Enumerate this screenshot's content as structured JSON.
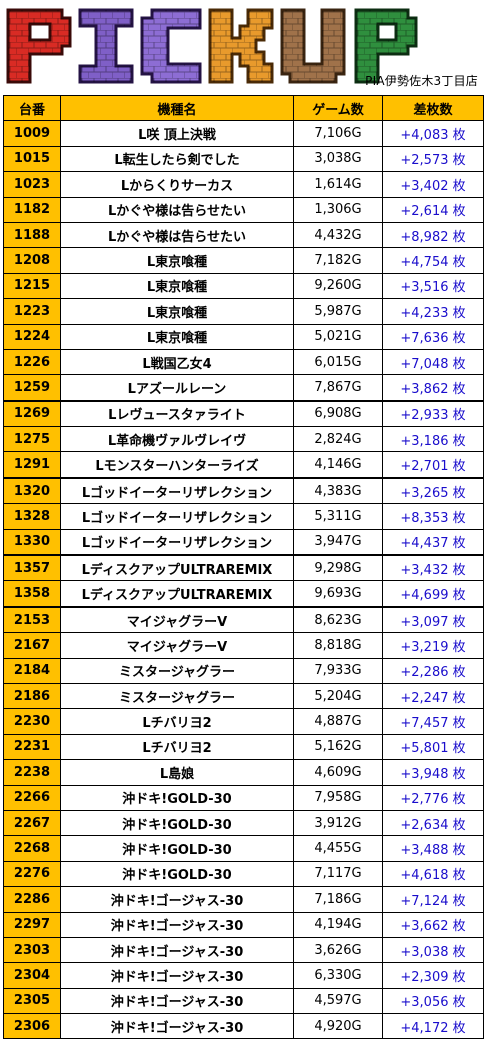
{
  "header": {
    "logo_text": "PICKUP",
    "store_name": "PIA伊勢佐木3丁目店"
  },
  "table": {
    "columns": [
      "台番",
      "機種名",
      "ゲーム数",
      "差枚数"
    ],
    "rows": [
      {
        "num": "1009",
        "name": "L咲 頂上決戦",
        "games": "7,106G",
        "diff": "+4,083 枚"
      },
      {
        "num": "1015",
        "name": "L転生したら剣でした",
        "games": "3,038G",
        "diff": "+2,573 枚"
      },
      {
        "num": "1023",
        "name": "Lからくりサーカス",
        "games": "1,614G",
        "diff": "+3,402 枚"
      },
      {
        "num": "1182",
        "name": "Lかぐや様は告らせたい",
        "games": "1,306G",
        "diff": "+2,614 枚"
      },
      {
        "num": "1188",
        "name": "Lかぐや様は告らせたい",
        "games": "4,432G",
        "diff": "+8,982 枚"
      },
      {
        "num": "1208",
        "name": "L東京喰種",
        "games": "7,182G",
        "diff": "+4,754 枚"
      },
      {
        "num": "1215",
        "name": "L東京喰種",
        "games": "9,260G",
        "diff": "+3,516 枚"
      },
      {
        "num": "1223",
        "name": "L東京喰種",
        "games": "5,987G",
        "diff": "+4,233 枚"
      },
      {
        "num": "1224",
        "name": "L東京喰種",
        "games": "5,021G",
        "diff": "+7,636 枚"
      },
      {
        "num": "1226",
        "name": "L戦国乙女4",
        "games": "6,015G",
        "diff": "+7,048 枚"
      },
      {
        "num": "1259",
        "name": "Lアズールレーン",
        "games": "7,867G",
        "diff": "+3,862 枚"
      },
      {
        "num": "1269",
        "name": "Lレヴュースタァライト",
        "games": "6,908G",
        "diff": "+2,933 枚"
      },
      {
        "num": "1275",
        "name": "L革命機ヴァルヴレイヴ",
        "games": "2,824G",
        "diff": "+3,186 枚"
      },
      {
        "num": "1291",
        "name": "Lモンスターハンターライズ",
        "games": "4,146G",
        "diff": "+2,701 枚"
      },
      {
        "num": "1320",
        "name": "Lゴッドイーターリザレクション",
        "games": "4,383G",
        "diff": "+3,265 枚"
      },
      {
        "num": "1328",
        "name": "Lゴッドイーターリザレクション",
        "games": "5,311G",
        "diff": "+8,353 枚"
      },
      {
        "num": "1330",
        "name": "Lゴッドイーターリザレクション",
        "games": "3,947G",
        "diff": "+4,437 枚"
      },
      {
        "num": "1357",
        "name": "LディスクアップULTRAREMIX",
        "games": "9,298G",
        "diff": "+3,432 枚"
      },
      {
        "num": "1358",
        "name": "LディスクアップULTRAREMIX",
        "games": "9,693G",
        "diff": "+4,699 枚"
      },
      {
        "num": "2153",
        "name": "マイジャグラーV",
        "games": "8,623G",
        "diff": "+3,097 枚"
      },
      {
        "num": "2167",
        "name": "マイジャグラーV",
        "games": "8,818G",
        "diff": "+3,219 枚"
      },
      {
        "num": "2184",
        "name": "ミスタージャグラー",
        "games": "7,933G",
        "diff": "+2,286 枚"
      },
      {
        "num": "2186",
        "name": "ミスタージャグラー",
        "games": "5,204G",
        "diff": "+2,247 枚"
      },
      {
        "num": "2230",
        "name": "Lチバリヨ2",
        "games": "4,887G",
        "diff": "+7,457 枚"
      },
      {
        "num": "2231",
        "name": "Lチバリヨ2",
        "games": "5,162G",
        "diff": "+5,801 枚"
      },
      {
        "num": "2238",
        "name": "L島娘",
        "games": "4,609G",
        "diff": "+3,948 枚"
      },
      {
        "num": "2266",
        "name": "沖ドキ!GOLD-30",
        "games": "7,958G",
        "diff": "+2,776 枚"
      },
      {
        "num": "2267",
        "name": "沖ドキ!GOLD-30",
        "games": "3,912G",
        "diff": "+2,634 枚"
      },
      {
        "num": "2268",
        "name": "沖ドキ!GOLD-30",
        "games": "4,455G",
        "diff": "+3,488 枚"
      },
      {
        "num": "2276",
        "name": "沖ドキ!GOLD-30",
        "games": "7,117G",
        "diff": "+4,618 枚"
      },
      {
        "num": "2286",
        "name": "沖ドキ!ゴージャス-30",
        "games": "7,186G",
        "diff": "+7,124 枚"
      },
      {
        "num": "2297",
        "name": "沖ドキ!ゴージャス-30",
        "games": "4,194G",
        "diff": "+3,662 枚"
      },
      {
        "num": "2303",
        "name": "沖ドキ!ゴージャス-30",
        "games": "3,626G",
        "diff": "+3,038 枚"
      },
      {
        "num": "2304",
        "name": "沖ドキ!ゴージャス-30",
        "games": "6,330G",
        "diff": "+2,309 枚"
      },
      {
        "num": "2305",
        "name": "沖ドキ!ゴージャス-30",
        "games": "4,597G",
        "diff": "+3,056 枚"
      },
      {
        "num": "2306",
        "name": "沖ドキ!ゴージャス-30",
        "games": "4,920G",
        "diff": "+4,172 枚"
      }
    ]
  }
}
